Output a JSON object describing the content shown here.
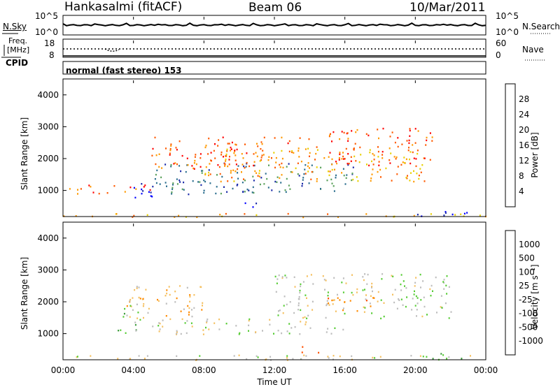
{
  "header": {
    "station": "Hankasalmi (fitACF)",
    "beam": "Beam 06",
    "date": "10/Mar/2011"
  },
  "left_labels": {
    "nsky": "N.Sky",
    "freq": "Freq.",
    "freq_unit": "[MHz]",
    "cpid": "CPID"
  },
  "right_labels": {
    "nsearch": "N.Search",
    "nave": "Nave"
  },
  "cpid_text": "normal (fast stereo) 153",
  "colors": {
    "background": "#ffffff",
    "axis": "#000000",
    "ground_scatter": "#bdbdbd"
  },
  "chart_data": [
    {
      "type": "line",
      "name": "noise-panel",
      "left_axis": {
        "label": "N.Sky",
        "ticks": [
          "10^5",
          "10^0"
        ]
      },
      "right_axis": {
        "label": "N.Search",
        "ticks": [
          "10^5",
          "10^0"
        ]
      },
      "x": [
        "00:00",
        "04:00",
        "08:00",
        "12:00",
        "16:00",
        "20:00",
        "00:00"
      ]
    },
    {
      "type": "line",
      "name": "frequency-panel",
      "left_axis": {
        "ticks": [
          "18",
          "8"
        ]
      },
      "right_axis": {
        "label": "Nave",
        "ticks": [
          "60",
          "0"
        ]
      },
      "x": [
        "00:00",
        "04:00",
        "08:00",
        "12:00",
        "16:00",
        "20:00",
        "00:00"
      ]
    },
    {
      "type": "heatmap",
      "name": "power-panel",
      "ylabel": "Slant Range [km]",
      "y_ticks": [
        "4000",
        "3000",
        "2000",
        "1000"
      ],
      "ylim": [
        180,
        4500
      ],
      "xlim_hours": [
        0,
        24
      ],
      "colorbar": {
        "label": "Power [dB]",
        "ticks": [
          "28",
          "24",
          "20",
          "16",
          "12",
          "8",
          "4"
        ],
        "colors": [
          "#ff0000",
          "#ff5a00",
          "#ff9900",
          "#e8d000",
          "#5aa05a",
          "#2c6f8f",
          "#1a2aa8",
          "#0000ff"
        ]
      },
      "blobs": [
        {
          "t0": 5.2,
          "t1": 16.5,
          "r0": 900,
          "r1": 1900,
          "level": 5
        },
        {
          "t0": 3.5,
          "t1": 5.5,
          "r0": 800,
          "r1": 1300,
          "level": 7
        },
        {
          "t0": 10.3,
          "t1": 11.2,
          "r0": 350,
          "r1": 700,
          "level": 7
        },
        {
          "t0": 8.0,
          "t1": 20.5,
          "r0": 1300,
          "r1": 2400,
          "level": 2
        },
        {
          "t0": 0.3,
          "t1": 5.0,
          "r0": 900,
          "r1": 1200,
          "level": 1
        },
        {
          "t0": 15.0,
          "t1": 21.0,
          "r0": 1800,
          "r1": 3000,
          "level": 1
        },
        {
          "t0": 5.0,
          "t1": 14.0,
          "r0": 1700,
          "r1": 2700,
          "level": 1
        },
        {
          "t0": 20.0,
          "t1": 23.5,
          "r0": 200,
          "r1": 400,
          "level": 7
        },
        {
          "t0": 0.0,
          "t1": 24.0,
          "r0": 180,
          "r1": 300,
          "level": 2
        }
      ]
    },
    {
      "type": "heatmap",
      "name": "velocity-panel",
      "ylabel": "Slant Range [km]",
      "y_ticks": [
        "4000",
        "3000",
        "2000",
        "1000"
      ],
      "ylim": [
        180,
        4500
      ],
      "xlim_hours": [
        0,
        24
      ],
      "colorbar": {
        "label": "Velocity [m s⁻¹]",
        "ticks": [
          "1000",
          "500",
          "100",
          "25",
          "-25",
          "-100",
          "-500",
          "-1000"
        ],
        "colors": [
          "#0033cc",
          "#2a7a9a",
          "#3a9a3a",
          "#55cc33",
          "#bdbdbd",
          "#f5c060",
          "#ff8a00",
          "#ff5000",
          "#ff0000"
        ]
      },
      "blobs": [
        {
          "t0": 5.0,
          "t1": 16.0,
          "r0": 1000,
          "r1": 1500,
          "level": 4
        },
        {
          "t0": 12.0,
          "t1": 22.0,
          "r0": 1500,
          "r1": 2900,
          "level": 4
        },
        {
          "t0": 3.5,
          "t1": 8.0,
          "r0": 1500,
          "r1": 2600,
          "level": 5
        },
        {
          "t0": 15.0,
          "t1": 18.0,
          "r0": 1700,
          "r1": 2200,
          "level": 6
        },
        {
          "t0": 3.0,
          "t1": 4.5,
          "r0": 1000,
          "r1": 1900,
          "level": 3
        },
        {
          "t0": 13.5,
          "t1": 14.5,
          "r0": 400,
          "r1": 700,
          "level": 7
        },
        {
          "t0": 20.5,
          "t1": 23.5,
          "r0": 200,
          "r1": 400,
          "level": 3
        },
        {
          "t0": 0.0,
          "t1": 24.0,
          "r0": 180,
          "r1": 350,
          "level": 4
        }
      ]
    }
  ],
  "x_axis": {
    "ticks": [
      "00:00",
      "04:00",
      "08:00",
      "12:00",
      "16:00",
      "20:00",
      "00:00"
    ],
    "label": "Time UT"
  }
}
